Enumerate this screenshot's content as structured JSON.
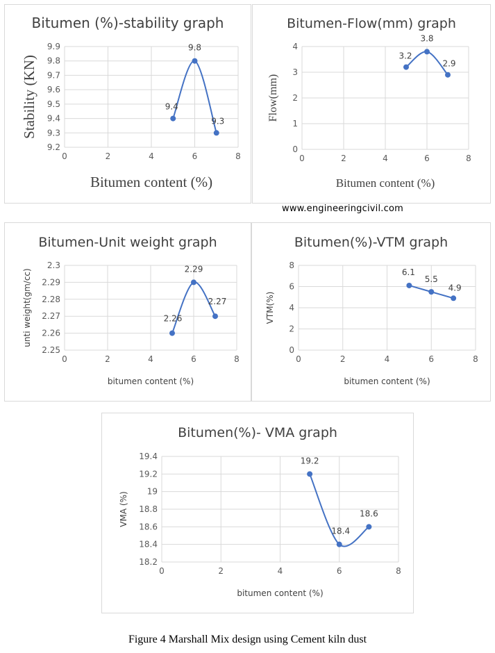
{
  "watermark": "www.engineeringcivil.com",
  "caption": "Figure 4 Marshall Mix design using Cement kiln dust",
  "style": {
    "line_color": "#4472c4",
    "grid_color": "#d9d9d9",
    "axis_text_color": "#595959",
    "border_color": "#d9d9d9"
  },
  "chart_data": [
    {
      "id": "stability",
      "type": "line",
      "smooth": true,
      "title": "Bitumen (%)-stability graph",
      "xlabel": "Bitumen content (%)",
      "ylabel": "Stability (KN)",
      "xlim": [
        0,
        8
      ],
      "ylim": [
        9.2,
        9.9
      ],
      "xticks": [
        "0",
        "2",
        "4",
        "6",
        "8"
      ],
      "yticks": [
        "9.2",
        "9.3",
        "9.4",
        "9.5",
        "9.6",
        "9.7",
        "9.8",
        "9.9"
      ],
      "grid": true,
      "series": [
        {
          "x": [
            5,
            6,
            7
          ],
          "y": [
            9.4,
            9.8,
            9.3
          ],
          "labels": [
            "9.4",
            "9.8",
            "9.3"
          ]
        }
      ]
    },
    {
      "id": "flow",
      "type": "line",
      "smooth": true,
      "title": "Bitumen-Flow(mm) graph",
      "xlabel": "Bitumen content (%)",
      "ylabel": "Flow(mm)",
      "xlim": [
        0,
        8
      ],
      "ylim": [
        0,
        4
      ],
      "xticks": [
        "0",
        "2",
        "4",
        "6",
        "8"
      ],
      "yticks": [
        "0",
        "1",
        "2",
        "3",
        "4"
      ],
      "grid": true,
      "series": [
        {
          "x": [
            5,
            6,
            7
          ],
          "y": [
            3.2,
            3.8,
            2.9
          ],
          "labels": [
            "3.2",
            "3.8",
            "2.9"
          ]
        }
      ]
    },
    {
      "id": "unit-weight",
      "type": "line",
      "smooth": true,
      "title": "Bitumen-Unit weight graph",
      "xlabel": "bitumen content (%)",
      "ylabel": "unti weight(gm/cc)",
      "xlim": [
        0,
        8
      ],
      "ylim": [
        2.25,
        2.3
      ],
      "xticks": [
        "0",
        "2",
        "4",
        "6",
        "8"
      ],
      "yticks": [
        "2.25",
        "2.26",
        "2.27",
        "2.28",
        "2.29",
        "2.3"
      ],
      "grid": true,
      "series": [
        {
          "x": [
            5,
            6,
            7
          ],
          "y": [
            2.26,
            2.29,
            2.27
          ],
          "labels": [
            "2.26",
            "2.29",
            "2.27"
          ]
        }
      ]
    },
    {
      "id": "vtm",
      "type": "line",
      "smooth": false,
      "title": "Bitumen(%)-VTM graph",
      "xlabel": "bitumen content (%)",
      "ylabel": "VTM(%)",
      "xlim": [
        0,
        8
      ],
      "ylim": [
        0,
        8
      ],
      "xticks": [
        "0",
        "2",
        "4",
        "6",
        "8"
      ],
      "yticks": [
        "0",
        "2",
        "4",
        "6",
        "8"
      ],
      "grid": true,
      "series": [
        {
          "x": [
            5,
            6,
            7
          ],
          "y": [
            6.1,
            5.5,
            4.9
          ],
          "labels": [
            "6.1",
            "5.5",
            "4.9"
          ]
        }
      ]
    },
    {
      "id": "vma",
      "type": "line",
      "smooth": true,
      "title": "Bitumen(%)- VMA graph",
      "xlabel": "bitumen content (%)",
      "ylabel": "VMA (%)",
      "xlim": [
        0,
        8
      ],
      "ylim": [
        18.2,
        19.4
      ],
      "xticks": [
        "0",
        "2",
        "4",
        "6",
        "8"
      ],
      "yticks": [
        "18.2",
        "18.4",
        "18.6",
        "18.8",
        "19",
        "19.2",
        "19.4"
      ],
      "grid": true,
      "series": [
        {
          "x": [
            5,
            6,
            7
          ],
          "y": [
            19.2,
            18.4,
            18.6
          ],
          "labels": [
            "19.2",
            "18.4",
            "18.6"
          ]
        }
      ]
    }
  ]
}
